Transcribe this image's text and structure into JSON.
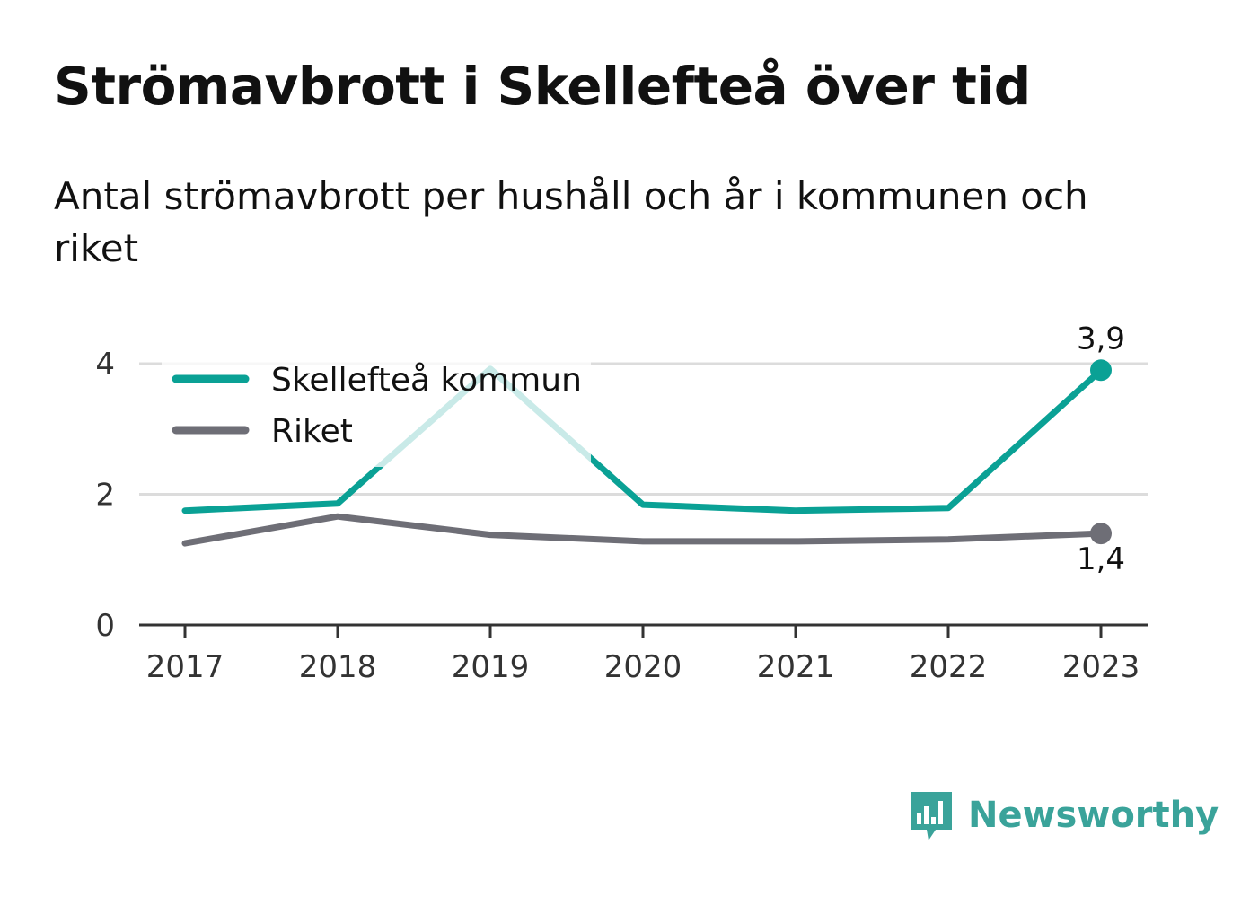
{
  "title": "Strömavbrott i Skellefteå över tid",
  "subtitle": "Antal strömavbrott per hushåll och år i kommunen och riket",
  "logo": {
    "text": "Newsworthy",
    "icon": "bar-chart-speech-bubble-icon",
    "color": "#3aa39a"
  },
  "chart_data": {
    "type": "line",
    "x": [
      "2017",
      "2018",
      "2019",
      "2020",
      "2021",
      "2022",
      "2023"
    ],
    "yticks": [
      "0",
      "2",
      "4"
    ],
    "ylim": [
      0,
      4
    ],
    "grid": true,
    "legend_position": "top-left",
    "series": [
      {
        "name": "Skellefteå kommun",
        "color": "#0aa195",
        "values": [
          1.75,
          1.86,
          3.92,
          1.84,
          1.75,
          1.79,
          3.9
        ],
        "end_label": "3,9"
      },
      {
        "name": "Riket",
        "color": "#6e6e76",
        "values": [
          1.25,
          1.66,
          1.38,
          1.28,
          1.28,
          1.31,
          1.4
        ],
        "end_label": "1,4"
      }
    ]
  }
}
